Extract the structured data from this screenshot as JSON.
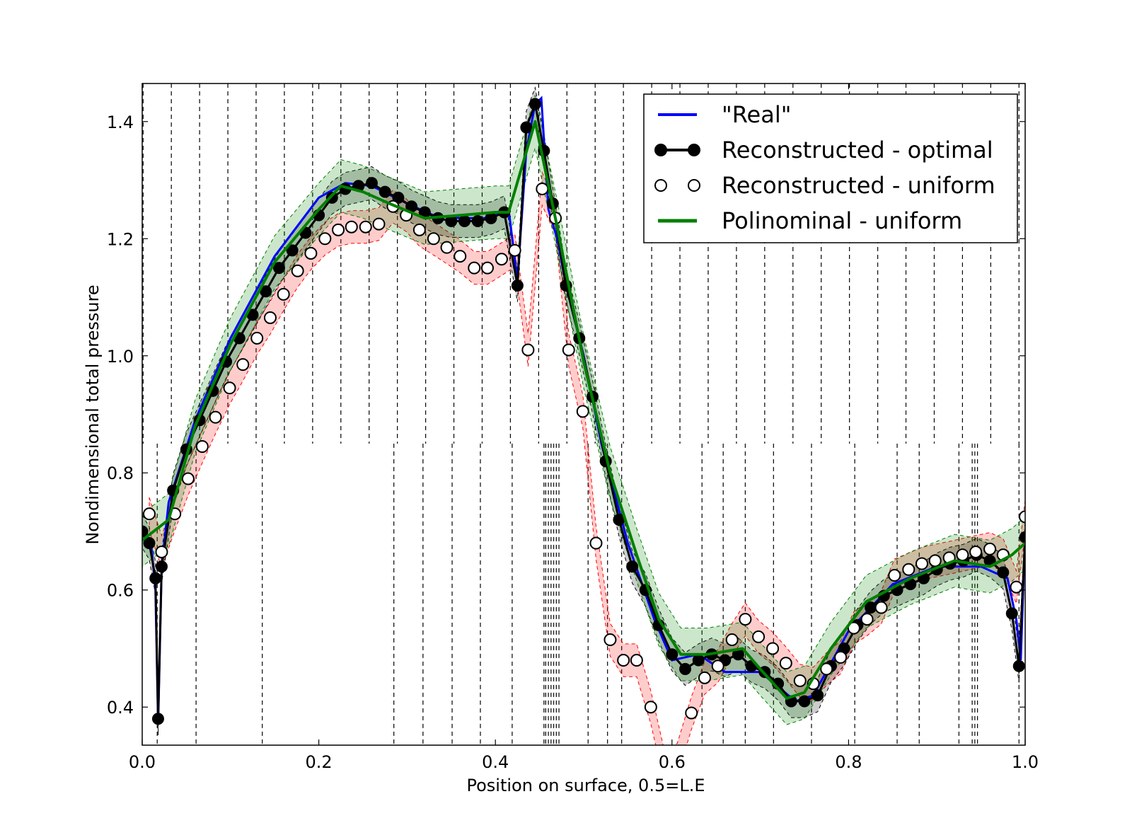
{
  "chart_data": {
    "type": "line",
    "title": "",
    "xlabel": "Position on surface, 0.5=L.E",
    "ylabel": "Nondimensional total pressure",
    "xlim": [
      0.0,
      1.0
    ],
    "ylim": [
      0.335,
      1.465
    ],
    "xticks": [
      "0.0",
      "0.2",
      "0.4",
      "0.6",
      "0.8",
      "1.0"
    ],
    "xtick_values": [
      0.0,
      0.2,
      0.4,
      0.6,
      0.8,
      1.0
    ],
    "yticks": [
      "0.4",
      "0.6",
      "0.8",
      "1.0",
      "1.2",
      "1.4"
    ],
    "ytick_values": [
      0.4,
      0.6,
      0.8,
      1.0,
      1.2,
      1.4
    ],
    "grid": false,
    "legend_position": "top-right",
    "colors": {
      "real": "#0000ff",
      "optimal": "#000000",
      "uniform": "#000000",
      "polynomial": "#008000",
      "band_green": "#008000",
      "band_red": "#ff0000",
      "band_black": "#000000"
    },
    "series": [
      {
        "name": "\"Real\"",
        "style": "line",
        "x": [
          0.0,
          0.01,
          0.015,
          0.018,
          0.022,
          0.03,
          0.06,
          0.1,
          0.15,
          0.2,
          0.23,
          0.26,
          0.3,
          0.33,
          0.36,
          0.39,
          0.41,
          0.415,
          0.425,
          0.435,
          0.445,
          0.452,
          0.46,
          0.47,
          0.48,
          0.5,
          0.52,
          0.55,
          0.58,
          0.6,
          0.63,
          0.66,
          0.7,
          0.74,
          0.76,
          0.8,
          0.85,
          0.9,
          0.95,
          0.98,
          0.99,
          0.995,
          1.0
        ],
        "y": [
          0.7,
          0.68,
          0.6,
          0.37,
          0.64,
          0.75,
          0.89,
          1.03,
          1.17,
          1.27,
          1.295,
          1.29,
          1.26,
          1.24,
          1.235,
          1.235,
          1.245,
          1.25,
          1.13,
          1.35,
          1.43,
          1.44,
          1.25,
          1.2,
          1.12,
          1.0,
          0.85,
          0.68,
          0.55,
          0.48,
          0.49,
          0.46,
          0.46,
          0.41,
          0.42,
          0.53,
          0.61,
          0.64,
          0.64,
          0.62,
          0.55,
          0.48,
          0.7
        ]
      },
      {
        "name": "Reconstructed - optimal",
        "style": "line-marker-filled",
        "x": [
          0.0,
          0.008,
          0.015,
          0.018,
          0.022,
          0.035,
          0.05,
          0.065,
          0.08,
          0.095,
          0.11,
          0.125,
          0.14,
          0.155,
          0.17,
          0.185,
          0.2,
          0.215,
          0.23,
          0.245,
          0.26,
          0.275,
          0.29,
          0.305,
          0.32,
          0.335,
          0.35,
          0.365,
          0.38,
          0.395,
          0.41,
          0.425,
          0.435,
          0.445,
          0.455,
          0.465,
          0.48,
          0.495,
          0.51,
          0.525,
          0.54,
          0.555,
          0.57,
          0.585,
          0.6,
          0.615,
          0.63,
          0.645,
          0.66,
          0.675,
          0.69,
          0.705,
          0.72,
          0.735,
          0.75,
          0.765,
          0.78,
          0.795,
          0.81,
          0.825,
          0.84,
          0.855,
          0.87,
          0.885,
          0.9,
          0.915,
          0.93,
          0.945,
          0.96,
          0.975,
          0.985,
          0.993,
          1.0
        ],
        "y": [
          0.7,
          0.68,
          0.62,
          0.38,
          0.64,
          0.77,
          0.84,
          0.89,
          0.94,
          0.99,
          1.03,
          1.07,
          1.11,
          1.15,
          1.18,
          1.21,
          1.24,
          1.27,
          1.285,
          1.29,
          1.295,
          1.28,
          1.27,
          1.255,
          1.245,
          1.235,
          1.23,
          1.23,
          1.23,
          1.235,
          1.245,
          1.12,
          1.39,
          1.43,
          1.35,
          1.26,
          1.12,
          1.03,
          0.93,
          0.82,
          0.72,
          0.64,
          0.6,
          0.54,
          0.49,
          0.465,
          0.48,
          0.49,
          0.48,
          0.49,
          0.47,
          0.46,
          0.44,
          0.41,
          0.41,
          0.42,
          0.47,
          0.5,
          0.54,
          0.57,
          0.59,
          0.6,
          0.61,
          0.62,
          0.635,
          0.645,
          0.65,
          0.66,
          0.65,
          0.63,
          0.56,
          0.47,
          0.69
        ]
      },
      {
        "name": "Reconstructed - uniform",
        "style": "marker-open",
        "x": [
          0.008,
          0.022,
          0.037,
          0.052,
          0.068,
          0.083,
          0.099,
          0.114,
          0.13,
          0.145,
          0.16,
          0.176,
          0.191,
          0.207,
          0.222,
          0.237,
          0.253,
          0.268,
          0.284,
          0.299,
          0.314,
          0.33,
          0.345,
          0.36,
          0.376,
          0.391,
          0.407,
          0.422,
          0.437,
          0.453,
          0.468,
          0.483,
          0.499,
          0.514,
          0.53,
          0.545,
          0.56,
          0.576,
          0.591,
          0.606,
          0.622,
          0.637,
          0.652,
          0.668,
          0.683,
          0.698,
          0.714,
          0.729,
          0.745,
          0.76,
          0.775,
          0.791,
          0.806,
          0.821,
          0.837,
          0.852,
          0.868,
          0.883,
          0.898,
          0.914,
          0.929,
          0.944,
          0.96,
          0.975,
          0.99,
          1.0
        ],
        "y": [
          0.73,
          0.665,
          0.73,
          0.79,
          0.845,
          0.895,
          0.945,
          0.985,
          1.03,
          1.065,
          1.105,
          1.145,
          1.175,
          1.2,
          1.215,
          1.22,
          1.22,
          1.225,
          1.255,
          1.24,
          1.215,
          1.2,
          1.185,
          1.17,
          1.15,
          1.15,
          1.165,
          1.18,
          1.01,
          1.285,
          1.235,
          1.01,
          0.905,
          0.68,
          0.515,
          0.48,
          0.48,
          0.4,
          0.3,
          0.31,
          0.39,
          0.45,
          0.47,
          0.515,
          0.55,
          0.52,
          0.5,
          0.475,
          0.445,
          0.44,
          0.465,
          0.485,
          0.535,
          0.55,
          0.57,
          0.625,
          0.635,
          0.645,
          0.65,
          0.655,
          0.66,
          0.665,
          0.67,
          0.66,
          0.605,
          0.725
        ]
      },
      {
        "name": "Polinominal - uniform",
        "style": "line",
        "x": [
          0.0,
          0.03,
          0.06,
          0.1,
          0.15,
          0.2,
          0.225,
          0.25,
          0.28,
          0.32,
          0.36,
          0.4,
          0.415,
          0.445,
          0.47,
          0.5,
          0.53,
          0.56,
          0.585,
          0.61,
          0.64,
          0.66,
          0.68,
          0.7,
          0.73,
          0.75,
          0.78,
          0.82,
          0.87,
          0.92,
          0.96,
          0.985,
          1.0
        ],
        "y": [
          0.685,
          0.72,
          0.88,
          1.02,
          1.16,
          1.25,
          1.29,
          1.28,
          1.26,
          1.235,
          1.24,
          1.245,
          1.245,
          1.4,
          1.22,
          0.99,
          0.8,
          0.66,
          0.55,
          0.49,
          0.49,
          0.495,
          0.5,
          0.465,
          0.415,
          0.425,
          0.5,
          0.58,
          0.62,
          0.65,
          0.64,
          0.66,
          0.68
        ]
      }
    ],
    "legend": [
      {
        "label": "\"Real\"",
        "kind": "line-blue"
      },
      {
        "label": "Reconstructed - optimal",
        "kind": "line-marker-filled"
      },
      {
        "label": "Reconstructed - uniform",
        "kind": "marker-open"
      },
      {
        "label": "Polinominal - uniform",
        "kind": "line-green"
      }
    ],
    "sensor_lines_upper": [
      0.001,
      0.033,
      0.065,
      0.097,
      0.129,
      0.161,
      0.193,
      0.225,
      0.257,
      0.289,
      0.321,
      0.353,
      0.385,
      0.417,
      0.449,
      0.481,
      0.513,
      0.545,
      0.577,
      0.609,
      0.641,
      0.673,
      0.705,
      0.737,
      0.769,
      0.801,
      0.833,
      0.865,
      0.897,
      0.929,
      0.961,
      0.993
    ],
    "sensor_lines_lower": [
      0.017,
      0.061,
      0.136,
      0.285,
      0.318,
      0.351,
      0.383,
      0.419,
      0.455,
      0.457,
      0.46,
      0.463,
      0.466,
      0.469,
      0.472,
      0.505,
      0.527,
      0.543,
      0.634,
      0.658,
      0.683,
      0.715,
      0.758,
      0.807,
      0.855,
      0.88,
      0.925,
      0.94,
      0.943,
      0.946,
      0.993
    ]
  }
}
